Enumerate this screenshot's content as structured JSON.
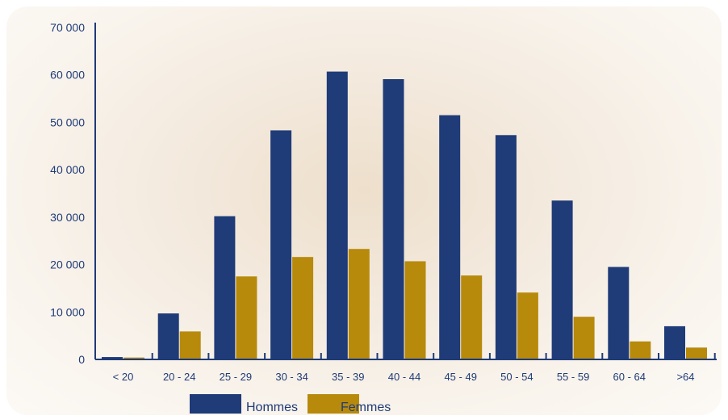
{
  "chart_data": {
    "type": "bar",
    "categories": [
      "< 20",
      "20 - 24",
      "25 - 29",
      "30 - 34",
      "35 - 39",
      "40 - 44",
      "45 - 49",
      "50 - 54",
      "55 - 59",
      "60 - 64",
      ">64"
    ],
    "series": [
      {
        "name": "Hommes",
        "color": "#1f3b78",
        "values": [
          500,
          9700,
          30200,
          48300,
          60700,
          59100,
          51500,
          47300,
          33500,
          19500,
          7000
        ]
      },
      {
        "name": "Femmes",
        "color": "#b78a0c",
        "values": [
          400,
          5900,
          17500,
          21600,
          23300,
          20700,
          17700,
          14100,
          9000,
          3800,
          2500
        ]
      }
    ],
    "ylim": [
      0,
      70000
    ],
    "yticks": [
      0,
      10000,
      20000,
      30000,
      40000,
      50000,
      60000,
      70000
    ],
    "ytick_labels": [
      "0",
      "10 000",
      "20 000",
      "30 000",
      "40 000",
      "50 000",
      "60 000",
      "70 000"
    ],
    "grid": false,
    "legend_position": "bottom-left"
  }
}
